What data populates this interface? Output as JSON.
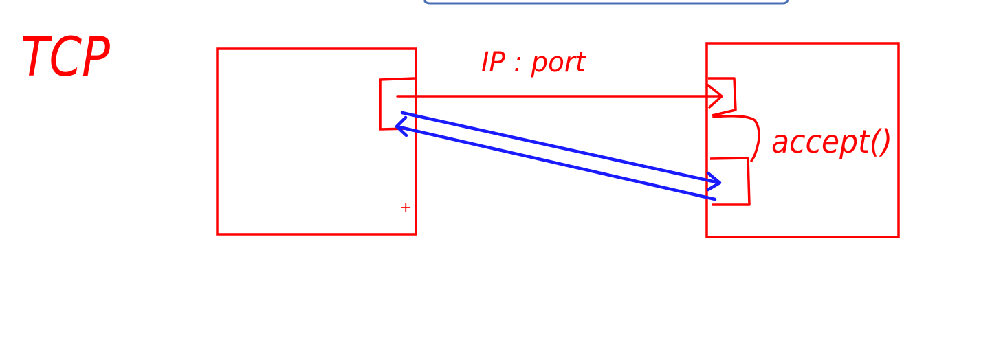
{
  "title_label": "TCP",
  "server_listen_label": "IP : port",
  "accept_label": "accept()",
  "cursor_mark": "+",
  "colors": {
    "ink_red": "#ff0000",
    "ink_blue": "#1a1aff",
    "toolbar_blue": "#4a6fb5",
    "background": "#ffffff"
  }
}
